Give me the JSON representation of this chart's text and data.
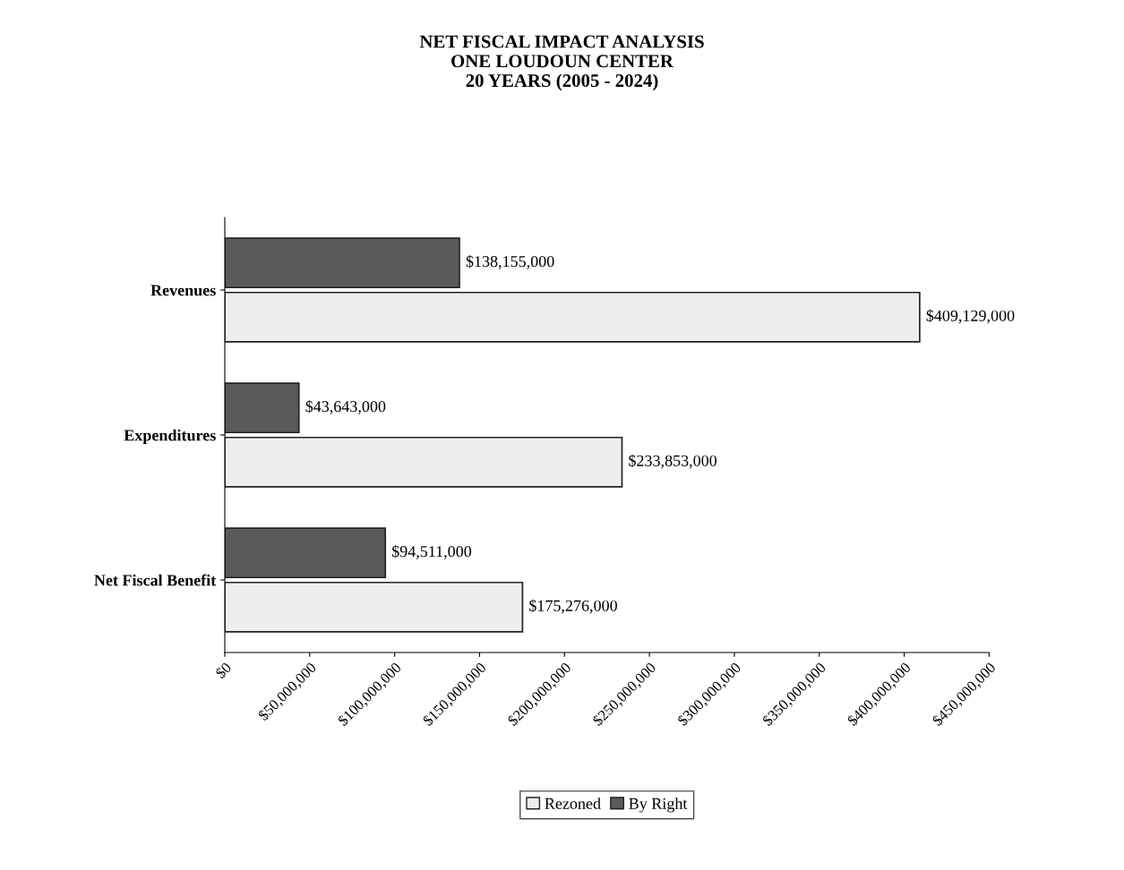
{
  "chart_data": {
    "type": "bar",
    "orientation": "horizontal",
    "title": "NET FISCAL IMPACT ANALYSIS\nONE LOUDOUN CENTER\n20 YEARS (2005 - 2024)",
    "categories": [
      "Revenues",
      "Expenditures",
      "Net Fiscal Benefit"
    ],
    "series": [
      {
        "name": "Rezoned",
        "color": "#eeeeee",
        "values": [
          409129000,
          233853000,
          175276000
        ],
        "value_labels": [
          "$409,129,000",
          "$233,853,000",
          "$175,276,000"
        ]
      },
      {
        "name": "By Right",
        "color": "#5a5a5a",
        "values": [
          138155000,
          43643000,
          94511000
        ],
        "value_labels": [
          "$138,155,000",
          "$43,643,000",
          "$94,511,000"
        ]
      }
    ],
    "xlim": [
      0,
      450000000
    ],
    "xticks": [
      {
        "value": 0,
        "label": "$0"
      },
      {
        "value": 50000000,
        "label": "$50,000,000"
      },
      {
        "value": 100000000,
        "label": "$100,000,000"
      },
      {
        "value": 150000000,
        "label": "$150,000,000"
      },
      {
        "value": 200000000,
        "label": "$200,000,000"
      },
      {
        "value": 250000000,
        "label": "$250,000,000"
      },
      {
        "value": 300000000,
        "label": "$300,000,000"
      },
      {
        "value": 350000000,
        "label": "$350,000,000"
      },
      {
        "value": 400000000,
        "label": "$400,000,000"
      },
      {
        "value": 450000000,
        "label": "$450,000,000"
      }
    ],
    "grid": false,
    "legend": "bottom"
  }
}
